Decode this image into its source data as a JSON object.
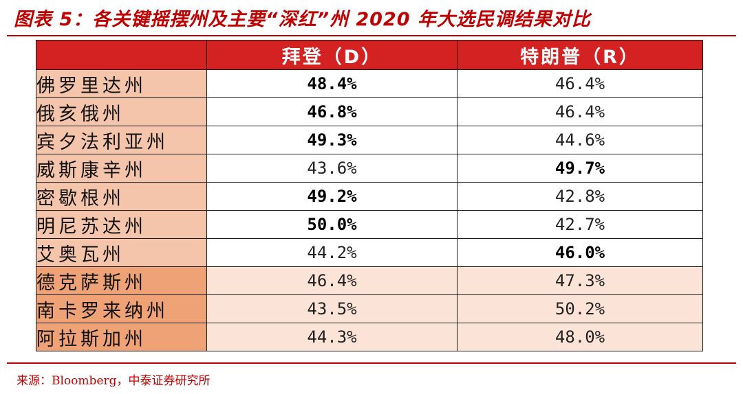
{
  "title": "图表 5：各关键摇摆州及主要“深红”州 2020 年大选民调结果对比",
  "table": {
    "headers": [
      "",
      "拜登（D）",
      "特朗普（R）"
    ],
    "rows": [
      {
        "state": "佛罗里达州",
        "biden": "48.4%",
        "trump": "46.4%",
        "winner": "biden",
        "group": "swing"
      },
      {
        "state": "俄亥俄州",
        "biden": "46.8%",
        "trump": "46.4%",
        "winner": "biden",
        "group": "swing"
      },
      {
        "state": "宾夕法利亚州",
        "biden": "49.3%",
        "trump": "44.6%",
        "winner": "biden",
        "group": "swing"
      },
      {
        "state": "威斯康辛州",
        "biden": "43.6%",
        "trump": "49.7%",
        "winner": "trump",
        "group": "swing"
      },
      {
        "state": "密歇根州",
        "biden": "49.2%",
        "trump": "42.8%",
        "winner": "biden",
        "group": "swing"
      },
      {
        "state": "明尼苏达州",
        "biden": "50.0%",
        "trump": "42.7%",
        "winner": "biden",
        "group": "swing"
      },
      {
        "state": "艾奥瓦州",
        "biden": "44.2%",
        "trump": "46.0%",
        "winner": "trump",
        "group": "swing"
      },
      {
        "state": "德克萨斯州",
        "biden": "46.4%",
        "trump": "47.3%",
        "winner": "none",
        "group": "deep-red"
      },
      {
        "state": "南卡罗来纳州",
        "biden": "43.5%",
        "trump": "50.2%",
        "winner": "none",
        "group": "deep-red"
      },
      {
        "state": "阿拉斯加州",
        "biden": "44.3%",
        "trump": "48.0%",
        "winner": "none",
        "group": "deep-red"
      }
    ]
  },
  "source": "来源：Bloomberg，中泰证券研究所",
  "colors": {
    "accent": "#c00000",
    "header_bg": "#d42121",
    "state_cell_swing": "#f4c5aa",
    "state_cell_deep_red": "#efa276",
    "value_cell_deep_red": "#fbe3d8"
  }
}
